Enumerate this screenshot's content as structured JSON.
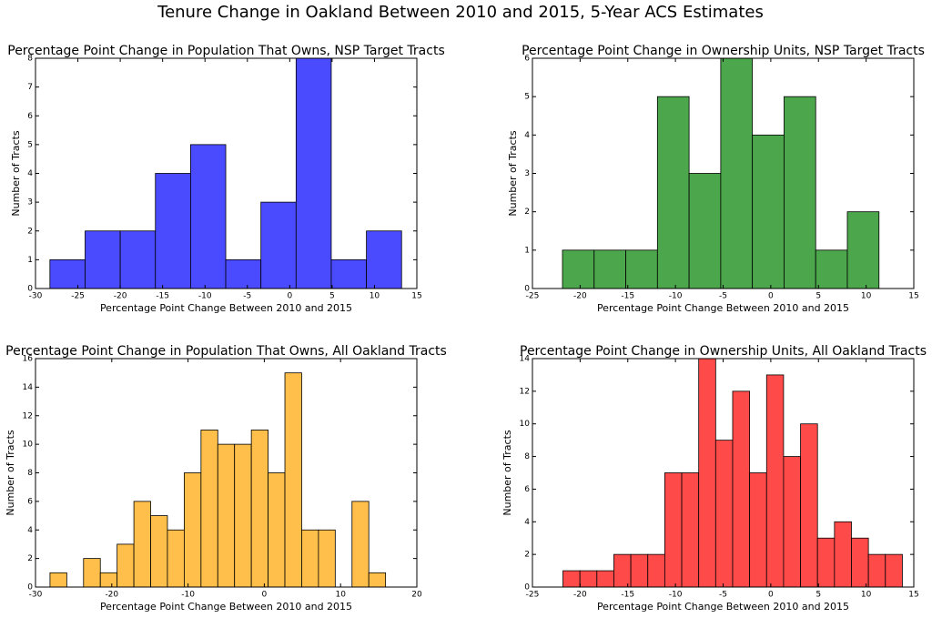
{
  "title": "Tenure Change in Oakland Between 2010 and 2015, 5-Year ACS Estimates",
  "chart_data": [
    {
      "type": "histogram",
      "title": "Percentage Point Change in Population That Owns, NSP Target Tracts",
      "xlabel": "Percentage Point Change Between 2010 and 2015",
      "ylabel": "Number of Tracts",
      "color": "#4a4aff",
      "bins": [
        -28.3,
        -24.15,
        -20.0,
        -15.85,
        -11.7,
        -7.55,
        -3.4,
        0.75,
        4.9,
        9.05,
        13.2
      ],
      "counts": [
        1,
        2,
        2,
        4,
        5,
        1,
        3,
        8,
        1,
        2
      ],
      "xlim": [
        -30,
        15
      ],
      "xticks": [
        -30,
        -25,
        -20,
        -15,
        -10,
        -5,
        0,
        5,
        10,
        15
      ],
      "ylim": [
        0,
        8
      ],
      "yticks": [
        0,
        1,
        2,
        3,
        4,
        5,
        6,
        7,
        8
      ]
    },
    {
      "type": "histogram",
      "title": "Percentage Point Change in Ownership Units, NSP Target Tracts",
      "xlabel": "Percentage Point Change Between 2010 and 2015",
      "ylabel": "Number of Tracts",
      "color": "#4ca64c",
      "bins": [
        -21.85,
        -18.53,
        -15.21,
        -11.89,
        -8.57,
        -5.25,
        -1.93,
        1.39,
        4.71,
        8.03,
        11.35
      ],
      "counts": [
        1,
        1,
        1,
        5,
        3,
        6,
        4,
        5,
        1,
        2
      ],
      "xlim": [
        -25,
        15
      ],
      "xticks": [
        -25,
        -20,
        -15,
        -10,
        -5,
        0,
        5,
        10,
        15
      ],
      "ylim": [
        0,
        6
      ],
      "yticks": [
        0,
        1,
        2,
        3,
        4,
        5,
        6
      ]
    },
    {
      "type": "histogram",
      "title": "Percentage Point Change in Population That Owns, All Oakland Tracts",
      "xlabel": "Percentage Point Change Between 2010 and 2015",
      "ylabel": "Number of Tracts",
      "color": "#ffbf4a",
      "bins": [
        -28.1,
        -25.9,
        -23.7,
        -21.5,
        -19.3,
        -17.1,
        -14.9,
        -12.7,
        -10.5,
        -8.3,
        -6.1,
        -3.9,
        -1.7,
        0.5,
        2.7,
        4.9,
        7.1,
        9.3,
        11.5,
        13.7,
        15.9
      ],
      "counts": [
        1,
        0,
        2,
        1,
        3,
        6,
        5,
        4,
        8,
        11,
        10,
        10,
        11,
        8,
        15,
        4,
        4,
        0,
        6,
        1
      ],
      "xlim": [
        -30,
        20
      ],
      "xticks": [
        -30,
        -20,
        -10,
        0,
        10,
        20
      ],
      "ylim": [
        0,
        16
      ],
      "yticks": [
        0,
        2,
        4,
        6,
        8,
        10,
        12,
        14,
        16
      ]
    },
    {
      "type": "histogram",
      "title": "Percentage Point Change in Ownership Units, All Oakland Tracts",
      "xlabel": "Percentage Point Change Between 2010 and 2015",
      "ylabel": "Number of Tracts",
      "color": "#ff4a4a",
      "bins": [
        -21.8,
        -20.02,
        -18.24,
        -16.46,
        -14.68,
        -12.9,
        -11.12,
        -9.34,
        -7.56,
        -5.78,
        -4.0,
        -2.22,
        -0.44,
        1.34,
        3.12,
        4.9,
        6.68,
        8.46,
        10.24,
        12.02,
        13.8
      ],
      "counts": [
        1,
        1,
        1,
        2,
        2,
        2,
        7,
        7,
        14,
        9,
        12,
        7,
        13,
        8,
        10,
        3,
        4,
        3,
        2,
        2
      ],
      "xlim": [
        -25,
        15
      ],
      "xticks": [
        -25,
        -20,
        -15,
        -10,
        -5,
        0,
        5,
        10,
        15
      ],
      "ylim": [
        0,
        14
      ],
      "yticks": [
        0,
        2,
        4,
        6,
        8,
        10,
        12,
        14
      ]
    }
  ]
}
